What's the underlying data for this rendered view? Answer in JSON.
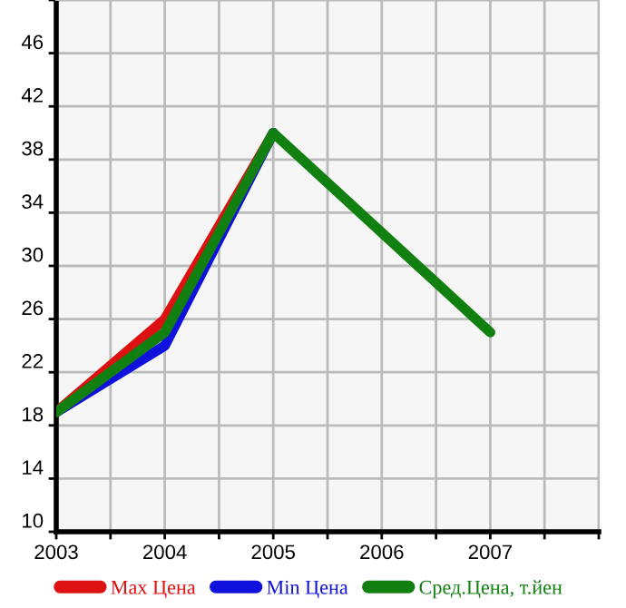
{
  "chart_data": {
    "type": "line",
    "x": [
      2003,
      2004,
      2005,
      2006,
      2007
    ],
    "series": [
      {
        "name": "Max Цена",
        "color": "#dd1111",
        "values": [
          19,
          26,
          40,
          null,
          null
        ]
      },
      {
        "name": "Min Цена",
        "color": "#1111dd",
        "values": [
          19,
          24,
          40,
          null,
          null
        ]
      },
      {
        "name": "Сред.Цена, т.йен",
        "color": "#118011",
        "values": [
          19,
          25,
          40,
          32.5,
          25
        ]
      }
    ],
    "xlim": [
      2003,
      2008
    ],
    "xticks": [
      2003,
      {
        "value": 2003.5,
        "label": null
      },
      2004,
      {
        "value": 2004.5,
        "label": null
      },
      2005,
      {
        "value": 2005.5,
        "label": null
      },
      2006,
      {
        "value": 2006.5,
        "label": null
      },
      2007,
      {
        "value": 2007.5,
        "label": null
      },
      {
        "value": 2008,
        "label": null
      }
    ],
    "ylim": [
      10,
      50
    ],
    "yticks": [
      10,
      14,
      18,
      22,
      26,
      30,
      34,
      38,
      42,
      46,
      {
        "value": 50,
        "label": null
      }
    ],
    "grid": true,
    "legend": "bottom",
    "marker": "none",
    "line_style": "solid"
  }
}
